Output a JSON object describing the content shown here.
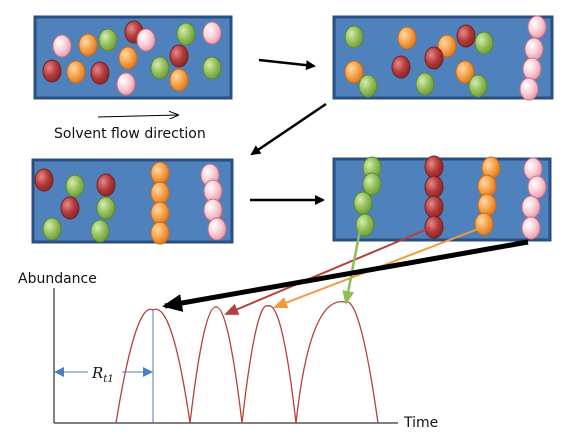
{
  "labels": {
    "flow_direction": "Solvent flow direction",
    "y_axis": "Abundance",
    "x_axis": "Time",
    "retention_time_symbol": "R",
    "retention_time_subscript": "t1"
  },
  "colors": {
    "column_fill": "#4f81bd",
    "column_border": "#2b4f80",
    "pink": "#f7c5cf",
    "green": "#8fbc55",
    "orange": "#f29a3d",
    "red": "#b83a3a",
    "curve": "#b5413a",
    "retention_marker": "#4a7fc1"
  }
}
